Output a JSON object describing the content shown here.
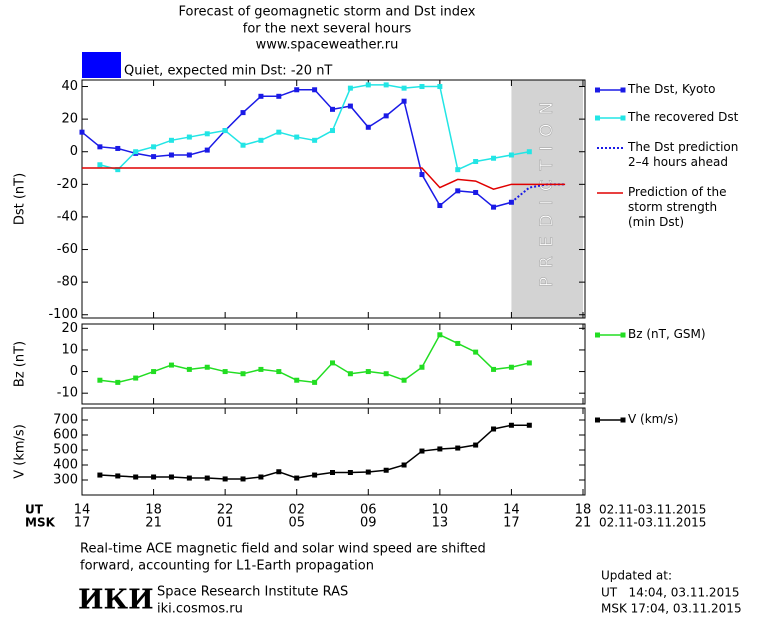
{
  "header": {
    "title_lines": [
      "Forecast of geomagnetic storm and Dst index",
      "for the next several hours",
      "www.spaceweather.ru"
    ]
  },
  "status": {
    "color": "#0000ff",
    "label": "Quiet, expected min Dst: -20 nT"
  },
  "chart_data": [
    {
      "type": "line",
      "ylabel": "Dst (nT)",
      "xlim": [
        0,
        28
      ],
      "ylim": [
        -102,
        44
      ],
      "yticks": [
        40,
        20,
        0,
        -20,
        -40,
        -60,
        -80,
        -100
      ],
      "band": {
        "label": "PREDICTION",
        "xlim": [
          24,
          28
        ],
        "color": "#d3d3d3"
      },
      "series": [
        {
          "name": "The Dst, Kyoto",
          "color": "#1a1ae6",
          "style": "solid",
          "marker": true,
          "x": [
            0,
            1,
            2,
            3,
            4,
            5,
            6,
            7,
            8,
            9,
            10,
            11,
            12,
            13,
            14,
            15,
            16,
            17,
            18,
            19,
            20,
            21,
            22,
            23,
            24
          ],
          "values": [
            12,
            3,
            2,
            -1,
            -3,
            -2,
            -2,
            1,
            13,
            24,
            34,
            34,
            38,
            38,
            26,
            28,
            15,
            22,
            31,
            -14,
            -33,
            -24,
            -25,
            -34,
            -31
          ]
        },
        {
          "name": "The recovered Dst",
          "color": "#22e5e5",
          "style": "solid",
          "marker": true,
          "x": [
            1,
            2,
            3,
            4,
            5,
            6,
            7,
            8,
            9,
            10,
            11,
            12,
            13,
            14,
            15,
            16,
            17,
            18,
            19,
            20,
            21,
            22,
            23,
            24,
            25
          ],
          "values": [
            -8,
            -11,
            0,
            3,
            7,
            9,
            11,
            13,
            4,
            7,
            12,
            9,
            7,
            13,
            39,
            41,
            41,
            39,
            40,
            40,
            -11,
            -6,
            -4,
            -2,
            0
          ]
        },
        {
          "name": "The Dst prediction\n2–4 hours ahead",
          "color": "#1a1ae6",
          "style": "dotted",
          "marker": false,
          "x": [
            24,
            25,
            26,
            27
          ],
          "values": [
            -31,
            -22,
            -20,
            -20
          ]
        },
        {
          "name": "Prediction of the\nstorm strength\n(min Dst)",
          "color": "#e00000",
          "style": "solid",
          "marker": false,
          "x": [
            0,
            19,
            20,
            21,
            22,
            23,
            24,
            27
          ],
          "values": [
            -10,
            -10,
            -22,
            -17,
            -18,
            -23,
            -20,
            -20
          ]
        }
      ]
    },
    {
      "type": "line",
      "ylabel": "Bz (nT)",
      "xlim": [
        0,
        28
      ],
      "ylim": [
        -15,
        22
      ],
      "yticks": [
        20,
        10,
        0,
        -10
      ],
      "series": [
        {
          "name": "Bz (nT, GSM)",
          "color": "#22dd22",
          "style": "solid",
          "marker": true,
          "x": [
            1,
            2,
            3,
            4,
            5,
            6,
            7,
            8,
            9,
            10,
            11,
            12,
            13,
            14,
            15,
            16,
            17,
            18,
            19,
            20,
            21,
            22,
            23,
            24,
            25
          ],
          "values": [
            -4,
            -5,
            -3,
            0,
            3,
            1,
            2,
            0,
            -1,
            1,
            0,
            -4,
            -5,
            4,
            -1,
            0,
            -1,
            -4,
            2,
            17,
            13,
            9,
            1,
            2,
            4
          ]
        }
      ]
    },
    {
      "type": "line",
      "ylabel": "V (km/s)",
      "xlim": [
        0,
        28
      ],
      "ylim": [
        200,
        780
      ],
      "yticks": [
        700,
        600,
        500,
        400,
        300
      ],
      "xticks": [
        {
          "value": 0,
          "label": "14"
        },
        {
          "value": 4,
          "label": "18"
        },
        {
          "value": 8,
          "label": "22"
        },
        {
          "value": 12,
          "label": "02"
        },
        {
          "value": 16,
          "label": "06"
        },
        {
          "value": 20,
          "label": "10"
        },
        {
          "value": 24,
          "label": "14"
        },
        {
          "value": 28,
          "label": "18"
        }
      ],
      "xticks2": [
        {
          "value": 0,
          "label": "17"
        },
        {
          "value": 4,
          "label": "21"
        },
        {
          "value": 8,
          "label": "01"
        },
        {
          "value": 12,
          "label": "05"
        },
        {
          "value": 16,
          "label": "09"
        },
        {
          "value": 20,
          "label": "13"
        },
        {
          "value": 24,
          "label": "17"
        },
        {
          "value": 28,
          "label": "21"
        }
      ],
      "xlabel": "UT",
      "xlabel2": "MSK",
      "date_range": "02.11-03.11.2015",
      "series": [
        {
          "name": "V (km/s)",
          "color": "#000000",
          "style": "solid",
          "marker": true,
          "x": [
            1,
            2,
            3,
            4,
            5,
            6,
            7,
            8,
            9,
            10,
            11,
            12,
            13,
            14,
            15,
            16,
            17,
            18,
            19,
            20,
            21,
            22,
            23,
            24,
            25
          ],
          "values": [
            333,
            327,
            320,
            320,
            320,
            313,
            313,
            307,
            307,
            320,
            355,
            313,
            333,
            350,
            350,
            353,
            365,
            400,
            493,
            507,
            513,
            533,
            640,
            665,
            665
          ]
        }
      ]
    }
  ],
  "footer": {
    "note_lines": [
      "Real-time ACE magnetic field and solar wind speed are shifted",
      "forward, accounting for L1-Earth propagation"
    ],
    "logo": "ИКИ",
    "institute": "Space Research Institute RAS",
    "site": "iki.cosmos.ru",
    "updated_lines": [
      "Updated at:",
      "UT   14:04, 03.11.2015",
      "MSK 17:04, 03.11.2015"
    ]
  }
}
